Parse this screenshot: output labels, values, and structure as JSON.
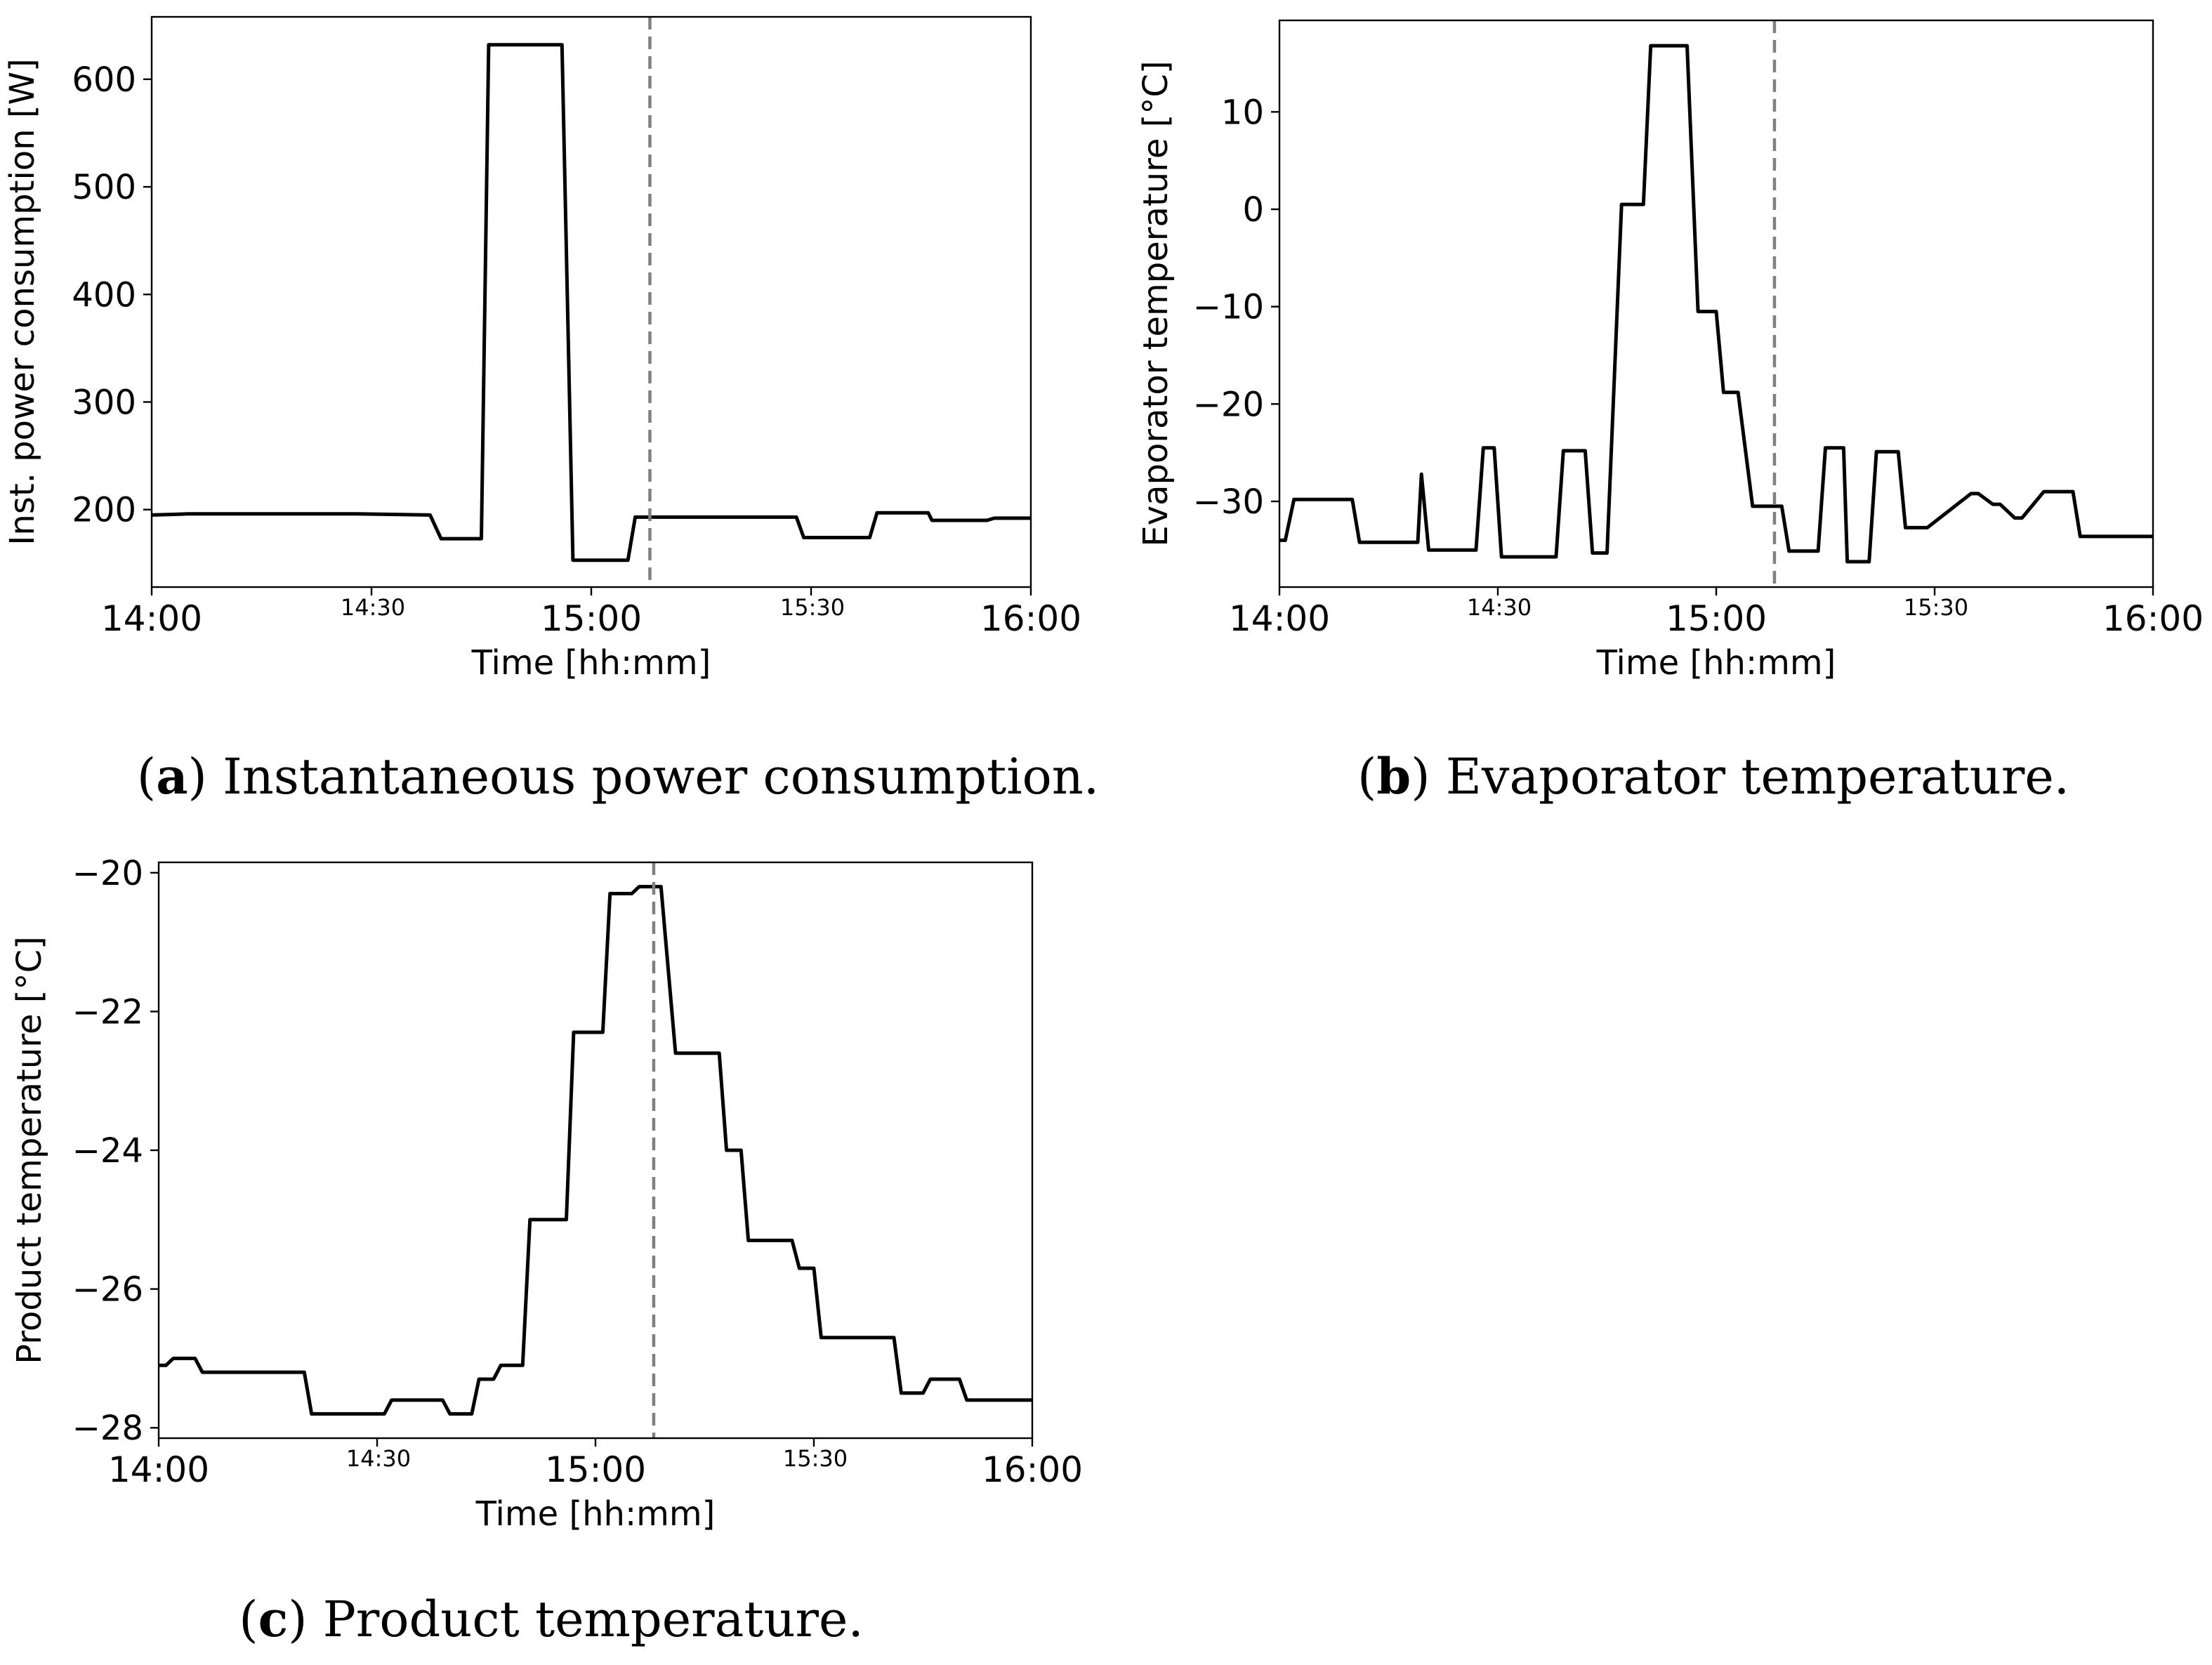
{
  "chart_data": [
    {
      "type": "line",
      "caption_letter": "a",
      "caption_text": "Instantaneous power consumption.",
      "xlabel": "Time [hh:mm]",
      "ylabel": "Inst. power consumption [W]",
      "xlim": [
        0,
        120
      ],
      "ylim": [
        128,
        658
      ],
      "x_ticks": [
        {
          "value": 0,
          "label": "14:00",
          "major": true
        },
        {
          "value": 30,
          "label": "14:30",
          "major": false
        },
        {
          "value": 60,
          "label": "15:00",
          "major": true
        },
        {
          "value": 90,
          "label": "15:30",
          "major": false
        },
        {
          "value": 120,
          "label": "16:00",
          "major": true
        }
      ],
      "y_ticks": [
        {
          "value": 200,
          "label": "200"
        },
        {
          "value": 300,
          "label": "300"
        },
        {
          "value": 400,
          "label": "400"
        },
        {
          "value": 500,
          "label": "500"
        },
        {
          "value": 600,
          "label": "600"
        }
      ],
      "event_x": 68,
      "series": [
        {
          "name": "Inst. power consumption",
          "x": [
            0,
            5,
            28,
            38,
            39.5,
            45,
            46,
            56,
            57.5,
            65,
            66,
            76,
            88,
            89,
            98,
            99,
            106,
            106.5,
            114,
            115,
            120
          ],
          "y": [
            195,
            196,
            196,
            195,
            173,
            173,
            632,
            632,
            153,
            153,
            193,
            193,
            193,
            174,
            174,
            197,
            197,
            190,
            190,
            192,
            192
          ]
        }
      ]
    },
    {
      "type": "line",
      "caption_letter": "b",
      "caption_text": "Evaporator temperature.",
      "xlabel": "Time [hh:mm]",
      "ylabel": "Evaporator temperature [°C]",
      "xlim": [
        0,
        120
      ],
      "ylim": [
        -38.8,
        19.4
      ],
      "x_ticks": [
        {
          "value": 0,
          "label": "14:00",
          "major": true
        },
        {
          "value": 30,
          "label": "14:30",
          "major": false
        },
        {
          "value": 60,
          "label": "15:00",
          "major": true
        },
        {
          "value": 90,
          "label": "15:30",
          "major": false
        },
        {
          "value": 120,
          "label": "16:00",
          "major": true
        }
      ],
      "y_ticks": [
        {
          "value": -30,
          "label": "−30"
        },
        {
          "value": -20,
          "label": "−20"
        },
        {
          "value": -10,
          "label": "−10"
        },
        {
          "value": 0,
          "label": "0"
        },
        {
          "value": 10,
          "label": "10"
        }
      ],
      "event_x": 68,
      "series": [
        {
          "name": "Evaporator temperature",
          "x": [
            0,
            0.8,
            2,
            10,
            11,
            19,
            19.5,
            20.5,
            27,
            28,
            29.5,
            30.5,
            38,
            39,
            42,
            43,
            45,
            47,
            48,
            50,
            51,
            56,
            57.5,
            60,
            61,
            63,
            65,
            66,
            69,
            70,
            74,
            75,
            77.5,
            78,
            81,
            82,
            85,
            86,
            88,
            89,
            95,
            96,
            98,
            99,
            101,
            102,
            105,
            106,
            109,
            110,
            113.5,
            114,
            120
          ],
          "y": [
            -34,
            -34,
            -29.8,
            -29.8,
            -34.2,
            -34.2,
            -27.2,
            -35,
            -35,
            -24.5,
            -24.5,
            -35.7,
            -35.7,
            -24.8,
            -24.8,
            -35.3,
            -35.3,
            0.5,
            0.5,
            0.5,
            16.8,
            16.8,
            -10.5,
            -10.5,
            -18.8,
            -18.8,
            -30.5,
            -30.5,
            -30.5,
            -35.1,
            -35.1,
            -24.5,
            -24.5,
            -36.2,
            -36.2,
            -24.9,
            -24.9,
            -32.7,
            -32.7,
            -32.7,
            -29.2,
            -29.2,
            -30.3,
            -30.3,
            -31.7,
            -31.7,
            -29,
            -29,
            -29,
            -33.6,
            -33.6,
            -33.6,
            -33.6
          ]
        }
      ]
    },
    {
      "type": "line",
      "caption_letter": "c",
      "caption_text": "Product temperature.",
      "xlabel": "Time [hh:mm]",
      "ylabel": "Product temperature [°C]",
      "xlim": [
        0,
        120
      ],
      "ylim": [
        -28.15,
        -19.85
      ],
      "x_ticks": [
        {
          "value": 0,
          "label": "14:00",
          "major": true
        },
        {
          "value": 30,
          "label": "14:30",
          "major": false
        },
        {
          "value": 60,
          "label": "15:00",
          "major": true
        },
        {
          "value": 90,
          "label": "15:30",
          "major": false
        },
        {
          "value": 120,
          "label": "16:00",
          "major": true
        }
      ],
      "y_ticks": [
        {
          "value": -28,
          "label": "−28"
        },
        {
          "value": -26,
          "label": "−26"
        },
        {
          "value": -24,
          "label": "−24"
        },
        {
          "value": -22,
          "label": "−22"
        },
        {
          "value": -20,
          "label": "−20"
        }
      ],
      "event_x": 68,
      "series": [
        {
          "name": "Product temperature",
          "x": [
            0,
            1,
            2,
            5,
            6,
            20,
            21,
            31,
            32,
            39,
            40,
            43,
            44,
            46,
            47,
            50,
            51,
            56,
            57,
            61,
            62,
            65,
            66,
            69,
            71,
            77,
            78,
            80,
            81,
            87,
            88,
            90,
            91,
            101,
            102,
            105,
            106,
            110,
            111,
            120
          ],
          "y": [
            -27.1,
            -27.1,
            -27,
            -27,
            -27.2,
            -27.2,
            -27.8,
            -27.8,
            -27.6,
            -27.6,
            -27.8,
            -27.8,
            -27.3,
            -27.3,
            -27.1,
            -27.1,
            -25,
            -25,
            -22.3,
            -22.3,
            -20.3,
            -20.3,
            -20.2,
            -20.2,
            -22.6,
            -22.6,
            -24,
            -24,
            -25.3,
            -25.3,
            -25.7,
            -25.7,
            -26.7,
            -26.7,
            -27.5,
            -27.5,
            -27.3,
            -27.3,
            -27.6,
            -27.6
          ]
        }
      ]
    }
  ]
}
